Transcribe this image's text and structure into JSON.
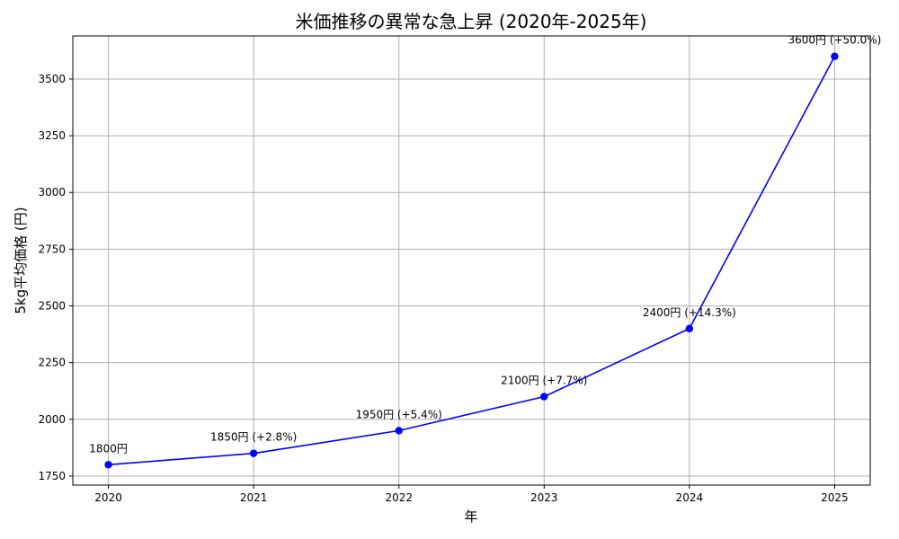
{
  "chart_data": {
    "type": "line",
    "title": "米価推移の異常な急上昇 (2020年-2025年)",
    "xlabel": "年",
    "ylabel": "5kg平均価格 (円)",
    "x": [
      2020,
      2021,
      2022,
      2023,
      2024,
      2025
    ],
    "xticks": [
      "2020",
      "2021",
      "2022",
      "2023",
      "2024",
      "2025"
    ],
    "series": [
      {
        "values": [
          1800,
          1850,
          1950,
          2100,
          2400,
          3600
        ],
        "color": "#0000ff",
        "marker": "circle"
      }
    ],
    "data_labels": [
      "1800円",
      "1850円 (+2.8%)",
      "1950円 (+5.4%)",
      "2100円 (+7.7%)",
      "2400円 (+14.3%)",
      "3600円 (+50.0%)"
    ],
    "yticks": [
      1750,
      2000,
      2250,
      2500,
      2750,
      3000,
      3250,
      3500
    ],
    "ylim": [
      1710,
      3690
    ],
    "xlim": [
      2019.755,
      2025.245
    ],
    "grid": true
  }
}
